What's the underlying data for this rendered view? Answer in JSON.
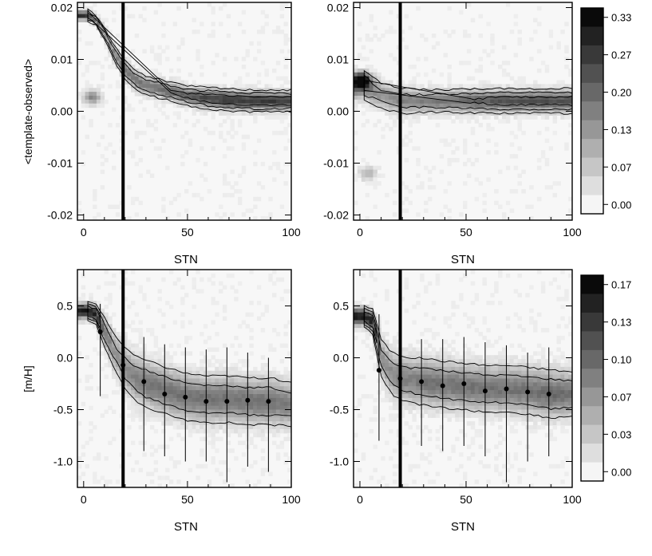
{
  "chart_data": [
    {
      "type": "heatmap",
      "panel": "top-left",
      "xlabel": "STN",
      "ylabel": "<template-observed>",
      "xlim": [
        -3,
        100
      ],
      "ylim": [
        -0.021,
        0.021
      ],
      "xticks": [
        "0",
        "50",
        "100"
      ],
      "yticks": [
        "0.02",
        "0.01",
        "0.00",
        "-0.01",
        "-0.02"
      ],
      "ytick_values": [
        0.02,
        0.01,
        0.0,
        -0.01,
        -0.02
      ],
      "vertical_line_x": 19,
      "ridge": {
        "x": [
          2,
          6,
          10,
          15,
          20,
          25,
          30,
          40,
          50,
          60,
          70,
          80,
          90,
          100
        ],
        "center": [
          0.0185,
          0.0175,
          0.015,
          0.011,
          0.008,
          0.006,
          0.005,
          0.004,
          0.003,
          0.0025,
          0.0022,
          0.002,
          0.002,
          0.002
        ],
        "width": [
          0.0015,
          0.0015,
          0.002,
          0.0025,
          0.003,
          0.003,
          0.0028,
          0.0028,
          0.0028,
          0.003,
          0.003,
          0.003,
          0.003,
          0.003
        ],
        "intensity": [
          0.85,
          0.6,
          0.45,
          0.5,
          0.55,
          0.55,
          0.55,
          0.6,
          0.65,
          0.75,
          0.8,
          0.8,
          0.8,
          0.75
        ]
      },
      "blobs": [
        {
          "x": 4,
          "y": 0.0027,
          "intensity": 0.5
        }
      ]
    },
    {
      "type": "heatmap",
      "panel": "top-right",
      "xlabel": "STN",
      "ylabel": "",
      "xlim": [
        -3,
        100
      ],
      "ylim": [
        -0.021,
        0.021
      ],
      "xticks": [
        "0",
        "50",
        "100"
      ],
      "yticks": [
        "0.02",
        "0.01",
        "0.00",
        "-0.01",
        "-0.02"
      ],
      "ytick_values": [
        0.02,
        0.01,
        0.0,
        -0.01,
        -0.02
      ],
      "vertical_line_x": 19,
      "ridge": {
        "x": [
          2,
          6,
          10,
          15,
          20,
          25,
          30,
          40,
          50,
          60,
          70,
          80,
          90,
          100
        ],
        "center": [
          0.005,
          0.004,
          0.003,
          0.0025,
          0.002,
          0.002,
          0.002,
          0.002,
          0.002,
          0.002,
          0.002,
          0.002,
          0.002,
          0.002
        ],
        "width": [
          0.004,
          0.0045,
          0.0045,
          0.0042,
          0.004,
          0.0038,
          0.0036,
          0.0035,
          0.0035,
          0.0035,
          0.0035,
          0.0035,
          0.0035,
          0.0035
        ],
        "intensity": [
          0.7,
          0.45,
          0.4,
          0.45,
          0.5,
          0.5,
          0.5,
          0.55,
          0.6,
          0.65,
          0.7,
          0.7,
          0.7,
          0.7
        ]
      },
      "blobs": [
        {
          "x": 1,
          "y": 0.006,
          "intensity": 0.9
        },
        {
          "x": 4,
          "y": -0.012,
          "intensity": 0.3
        }
      ]
    },
    {
      "type": "heatmap",
      "panel": "bottom-left",
      "xlabel": "STN",
      "ylabel": "[m/H]",
      "xlim": [
        -3,
        100
      ],
      "ylim": [
        -1.25,
        0.85
      ],
      "xticks": [
        "0",
        "50",
        "100"
      ],
      "yticks": [
        "0.5",
        "0.0",
        "-0.5",
        "-1.0"
      ],
      "ytick_values": [
        0.5,
        0.0,
        -0.5,
        -1.0
      ],
      "vertical_line_x": 19,
      "ridge": {
        "x": [
          2,
          6,
          10,
          15,
          20,
          25,
          30,
          40,
          50,
          60,
          70,
          80,
          90,
          100
        ],
        "center": [
          0.45,
          0.42,
          0.25,
          0.05,
          -0.1,
          -0.2,
          -0.25,
          -0.32,
          -0.38,
          -0.4,
          -0.4,
          -0.42,
          -0.42,
          -0.45
        ],
        "width": [
          0.12,
          0.14,
          0.22,
          0.3,
          0.35,
          0.35,
          0.36,
          0.36,
          0.36,
          0.36,
          0.36,
          0.36,
          0.36,
          0.34
        ],
        "intensity": [
          0.95,
          0.9,
          0.55,
          0.4,
          0.45,
          0.5,
          0.55,
          0.55,
          0.55,
          0.55,
          0.55,
          0.55,
          0.55,
          0.5
        ]
      },
      "points": {
        "x": [
          8,
          19,
          29,
          39,
          49,
          59,
          69,
          79,
          89
        ],
        "y": [
          0.25,
          -0.07,
          -0.23,
          -0.35,
          -0.38,
          -0.42,
          -0.42,
          -0.41,
          -0.42
        ],
        "yerr_low": [
          -0.37,
          -0.85,
          -0.9,
          -0.95,
          -1.0,
          -1.0,
          -1.2,
          -1.05,
          -1.1
        ],
        "yerr_high": [
          0.52,
          0.55,
          0.2,
          0.13,
          0.1,
          0.08,
          0.1,
          0.05,
          0.0
        ]
      }
    },
    {
      "type": "heatmap",
      "panel": "bottom-right",
      "xlabel": "STN",
      "ylabel": "",
      "xlim": [
        -3,
        100
      ],
      "ylim": [
        -1.25,
        0.85
      ],
      "xticks": [
        "0",
        "50",
        "100"
      ],
      "yticks": [
        "0.5",
        "0.0",
        "-0.5",
        "-1.0"
      ],
      "ytick_values": [
        0.5,
        0.0,
        -0.5,
        -1.0
      ],
      "vertical_line_x": 19,
      "ridge": {
        "x": [
          2,
          6,
          10,
          15,
          20,
          25,
          30,
          40,
          50,
          60,
          70,
          80,
          90,
          100
        ],
        "center": [
          0.4,
          0.35,
          0.0,
          -0.15,
          -0.2,
          -0.22,
          -0.23,
          -0.26,
          -0.28,
          -0.3,
          -0.3,
          -0.32,
          -0.35,
          -0.35
        ],
        "width": [
          0.14,
          0.16,
          0.3,
          0.35,
          0.36,
          0.36,
          0.36,
          0.36,
          0.36,
          0.36,
          0.36,
          0.36,
          0.36,
          0.34
        ],
        "intensity": [
          0.95,
          0.9,
          0.45,
          0.45,
          0.5,
          0.5,
          0.55,
          0.55,
          0.55,
          0.55,
          0.55,
          0.55,
          0.6,
          0.55
        ]
      },
      "points": {
        "x": [
          9,
          19,
          29,
          39,
          49,
          59,
          69,
          79,
          89
        ],
        "y": [
          -0.12,
          -0.2,
          -0.23,
          -0.27,
          -0.25,
          -0.32,
          -0.3,
          -0.33,
          -0.35
        ],
        "yerr_low": [
          -0.8,
          -0.75,
          -0.85,
          -0.9,
          -0.85,
          -0.95,
          -1.2,
          -1.0,
          -0.95
        ],
        "yerr_high": [
          0.42,
          0.25,
          0.18,
          0.18,
          0.2,
          0.15,
          0.12,
          0.05,
          0.1
        ]
      }
    }
  ],
  "colorbars": [
    {
      "panel": "top",
      "labels": [
        "0.33",
        "0.27",
        "0.20",
        "0.13",
        "0.07",
        "0.00"
      ],
      "levels": 11
    },
    {
      "panel": "bottom",
      "labels": [
        "0.17",
        "0.13",
        "0.10",
        "0.07",
        "0.03",
        "0.00"
      ],
      "levels": 11
    }
  ]
}
